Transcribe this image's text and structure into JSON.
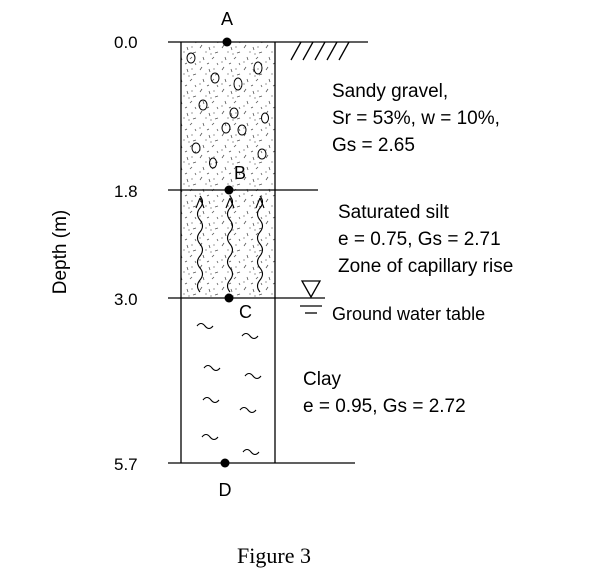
{
  "axis_label": "Depth (m)",
  "caption": "Figure 3",
  "depths": [
    "0.0",
    "1.8",
    "3.0",
    "5.7"
  ],
  "points": [
    "A",
    "B",
    "C",
    "D"
  ],
  "layers": {
    "gravel": {
      "name": "Sandy gravel,",
      "props1": "Sr = 53%, w = 10%,",
      "props2": "Gs = 2.65"
    },
    "silt": {
      "name": "Saturated silt",
      "props1": "e = 0.75, Gs = 2.71",
      "props2": "Zone of capillary rise"
    },
    "clay": {
      "name": "Clay",
      "props1": "e = 0.95, Gs = 2.72"
    }
  },
  "water_table_label": "Ground water table"
}
